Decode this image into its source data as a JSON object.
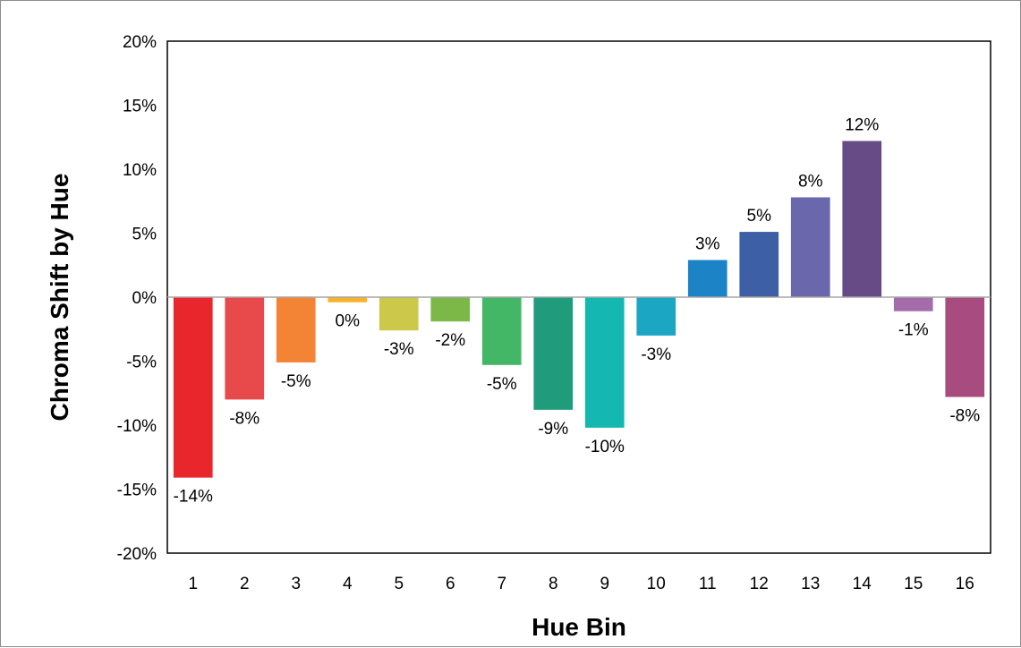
{
  "chart_data": {
    "type": "bar",
    "title": "",
    "xlabel": "Hue Bin",
    "ylabel": "Chroma Shift by Hue",
    "categories": [
      "1",
      "2",
      "3",
      "4",
      "5",
      "6",
      "7",
      "8",
      "9",
      "10",
      "11",
      "12",
      "13",
      "14",
      "15",
      "16"
    ],
    "values": [
      -14.1,
      -8.0,
      -5.1,
      -0.4,
      -2.6,
      -1.9,
      -5.3,
      -8.8,
      -10.2,
      -3.0,
      2.9,
      5.1,
      7.8,
      12.2,
      -1.1,
      -7.8
    ],
    "data_labels": [
      "-14%",
      "-8%",
      "-5%",
      "0%",
      "-3%",
      "-2%",
      "-5%",
      "-9%",
      "-10%",
      "-3%",
      "3%",
      "5%",
      "8%",
      "12%",
      "-1%",
      "-8%"
    ],
    "colors": [
      "#e8262c",
      "#e84a4c",
      "#f48435",
      "#f8b32a",
      "#ccc94a",
      "#7cb848",
      "#44b767",
      "#1f9c7b",
      "#14b8b0",
      "#1ba6c4",
      "#1d83c7",
      "#3c5fa6",
      "#6a67ad",
      "#674b87",
      "#a46caa",
      "#a84c7f"
    ],
    "ylim": [
      -20,
      20
    ],
    "yticks": [
      "-20%",
      "-15%",
      "-10%",
      "-5%",
      "0%",
      "5%",
      "10%",
      "15%",
      "20%"
    ],
    "ytick_values": [
      -20,
      -15,
      -10,
      -5,
      0,
      5,
      10,
      15,
      20
    ],
    "grid": false,
    "legend": "none"
  }
}
